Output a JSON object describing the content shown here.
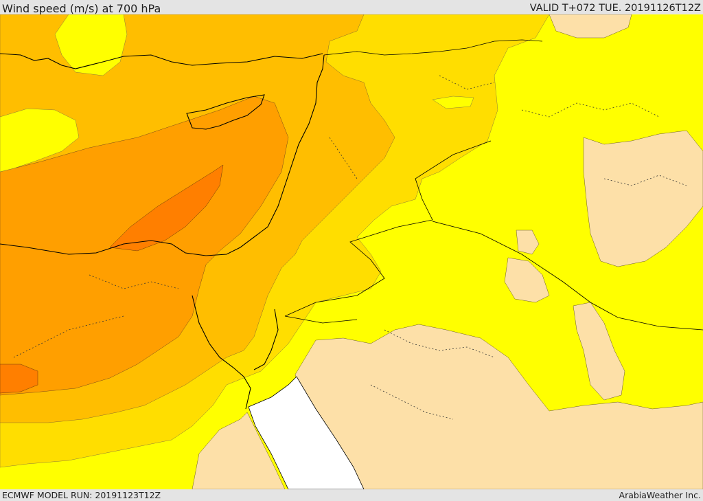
{
  "header": {
    "title": "Wind speed (m/s) at 700 hPa",
    "valid": "VALID T+072 TUE. 20191126T12Z"
  },
  "footer": {
    "model_run": "ECMWF MODEL RUN: 20191123T12Z",
    "credit": "ArabiaWeather Inc."
  },
  "palette": {
    "below_lowest_band": "#ffffff",
    "band_1": "#ffff00",
    "band_2": "#ffde00",
    "band_3": "#ffbe00",
    "band_4": "#ff9f00",
    "band_5": "#ff7f00",
    "land_low": "#fde0a8",
    "coastline": "#000000",
    "border": "#000000"
  }
}
